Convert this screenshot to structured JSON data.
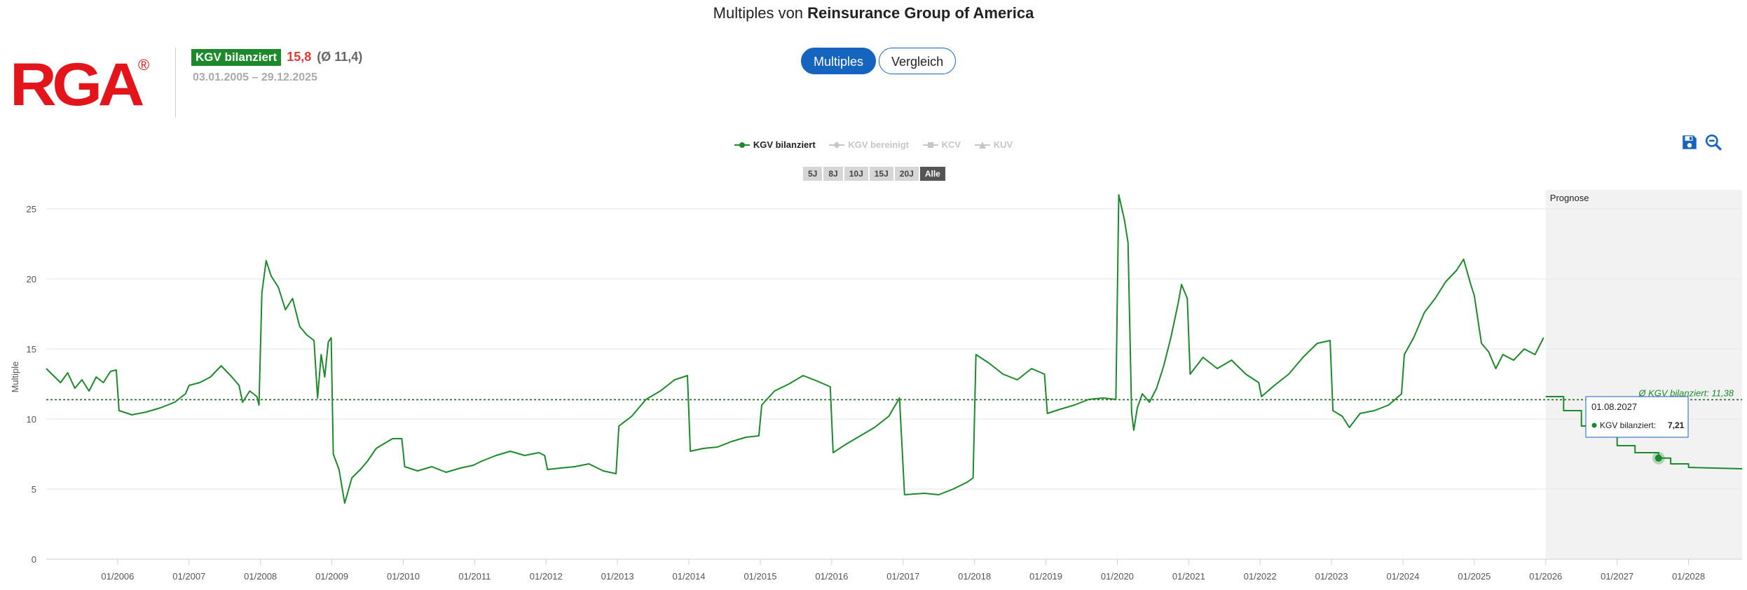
{
  "header": {
    "title_prefix": "Multiples von",
    "title_company": "Reinsurance Group of America"
  },
  "logo": {
    "text": "RGA",
    "mark": "®",
    "color": "#e3151a"
  },
  "kgv": {
    "label": "KGV bilanziert",
    "value": "15,8",
    "average": "(Ø 11,4)",
    "dates": "03.01.2005 – 29.12.2025"
  },
  "tabs": [
    {
      "label": "Multiples",
      "active": true
    },
    {
      "label": "Vergleich",
      "active": false
    }
  ],
  "legend": [
    {
      "label": "KGV bilanziert",
      "active": true
    },
    {
      "label": "KGV bereinigt",
      "active": false
    },
    {
      "label": "KCV",
      "active": false
    },
    {
      "label": "KUV",
      "active": false
    }
  ],
  "ranges": [
    {
      "label": "5J",
      "active": false
    },
    {
      "label": "8J",
      "active": false
    },
    {
      "label": "10J",
      "active": false
    },
    {
      "label": "15J",
      "active": false
    },
    {
      "label": "20J",
      "active": false
    },
    {
      "label": "Alle",
      "active": true
    }
  ],
  "toolbar": {
    "save_icon": "save-icon",
    "zoom_icon": "zoom-out-icon"
  },
  "colors": {
    "series": "#1c8a2a",
    "accent": "#1565c0",
    "forecast_bg": "#f2f2f2"
  },
  "chart_data": {
    "type": "line",
    "ylabel": "Multiple",
    "ylim": [
      0,
      26
    ],
    "yticks": [
      0,
      5,
      10,
      15,
      20,
      25
    ],
    "xlim": [
      2005.0,
      2028.75
    ],
    "xticks": [
      "01/2006",
      "01/2007",
      "01/2008",
      "01/2009",
      "01/2010",
      "01/2011",
      "01/2012",
      "01/2013",
      "01/2014",
      "01/2015",
      "01/2016",
      "01/2017",
      "01/2018",
      "01/2019",
      "01/2020",
      "01/2021",
      "01/2022",
      "01/2023",
      "01/2024",
      "01/2025",
      "01/2026",
      "01/2027",
      "01/2028"
    ],
    "grid": "horizontal",
    "forecast": {
      "label": "Prognose",
      "start": 2026.0
    },
    "average": {
      "value": 11.38,
      "label": "Ø KGV bilanziert: 11,38"
    },
    "tooltip": {
      "date": "01.08.2027",
      "series": "KGV bilanziert:",
      "value": "7,21",
      "x": 2027.58,
      "y": 7.21
    },
    "series": [
      {
        "name": "KGV bilanziert",
        "points": [
          [
            2005.0,
            13.6
          ],
          [
            2005.1,
            13.1
          ],
          [
            2005.2,
            12.6
          ],
          [
            2005.3,
            13.3
          ],
          [
            2005.4,
            12.2
          ],
          [
            2005.5,
            12.8
          ],
          [
            2005.6,
            12.0
          ],
          [
            2005.7,
            13.0
          ],
          [
            2005.8,
            12.6
          ],
          [
            2005.9,
            13.4
          ],
          [
            2005.98,
            13.5
          ],
          [
            2006.02,
            10.6
          ],
          [
            2006.2,
            10.3
          ],
          [
            2006.4,
            10.5
          ],
          [
            2006.6,
            10.8
          ],
          [
            2006.8,
            11.2
          ],
          [
            2006.95,
            11.8
          ],
          [
            2007.0,
            12.4
          ],
          [
            2007.15,
            12.6
          ],
          [
            2007.3,
            13.0
          ],
          [
            2007.45,
            13.8
          ],
          [
            2007.6,
            13.0
          ],
          [
            2007.7,
            12.4
          ],
          [
            2007.75,
            11.2
          ],
          [
            2007.85,
            12.0
          ],
          [
            2007.95,
            11.6
          ],
          [
            2007.98,
            11.0
          ],
          [
            2008.02,
            19.0
          ],
          [
            2008.08,
            21.3
          ],
          [
            2008.15,
            20.2
          ],
          [
            2008.25,
            19.4
          ],
          [
            2008.35,
            17.8
          ],
          [
            2008.45,
            18.6
          ],
          [
            2008.55,
            16.6
          ],
          [
            2008.65,
            16.0
          ],
          [
            2008.75,
            15.6
          ],
          [
            2008.8,
            11.5
          ],
          [
            2008.85,
            14.6
          ],
          [
            2008.9,
            13.0
          ],
          [
            2008.95,
            15.5
          ],
          [
            2008.99,
            15.8
          ],
          [
            2009.02,
            7.5
          ],
          [
            2009.1,
            6.4
          ],
          [
            2009.18,
            4.0
          ],
          [
            2009.28,
            5.8
          ],
          [
            2009.4,
            6.4
          ],
          [
            2009.5,
            7.0
          ],
          [
            2009.62,
            7.9
          ],
          [
            2009.75,
            8.3
          ],
          [
            2009.85,
            8.6
          ],
          [
            2009.98,
            8.6
          ],
          [
            2010.02,
            6.6
          ],
          [
            2010.2,
            6.3
          ],
          [
            2010.4,
            6.6
          ],
          [
            2010.6,
            6.2
          ],
          [
            2010.8,
            6.5
          ],
          [
            2010.98,
            6.7
          ],
          [
            2011.1,
            7.0
          ],
          [
            2011.3,
            7.4
          ],
          [
            2011.5,
            7.7
          ],
          [
            2011.7,
            7.4
          ],
          [
            2011.9,
            7.6
          ],
          [
            2011.98,
            7.4
          ],
          [
            2012.02,
            6.4
          ],
          [
            2012.2,
            6.5
          ],
          [
            2012.4,
            6.6
          ],
          [
            2012.6,
            6.8
          ],
          [
            2012.8,
            6.3
          ],
          [
            2012.98,
            6.1
          ],
          [
            2013.02,
            9.5
          ],
          [
            2013.2,
            10.2
          ],
          [
            2013.4,
            11.4
          ],
          [
            2013.6,
            12.0
          ],
          [
            2013.8,
            12.8
          ],
          [
            2013.98,
            13.1
          ],
          [
            2014.02,
            7.7
          ],
          [
            2014.2,
            7.9
          ],
          [
            2014.4,
            8.0
          ],
          [
            2014.6,
            8.4
          ],
          [
            2014.8,
            8.7
          ],
          [
            2014.98,
            8.8
          ],
          [
            2015.02,
            11.0
          ],
          [
            2015.2,
            12.0
          ],
          [
            2015.4,
            12.5
          ],
          [
            2015.6,
            13.1
          ],
          [
            2015.8,
            12.7
          ],
          [
            2015.98,
            12.3
          ],
          [
            2016.02,
            7.6
          ],
          [
            2016.2,
            8.2
          ],
          [
            2016.4,
            8.8
          ],
          [
            2016.6,
            9.4
          ],
          [
            2016.8,
            10.2
          ],
          [
            2016.95,
            11.5
          ],
          [
            2017.02,
            4.6
          ],
          [
            2017.3,
            4.7
          ],
          [
            2017.5,
            4.6
          ],
          [
            2017.7,
            5.0
          ],
          [
            2017.9,
            5.5
          ],
          [
            2017.98,
            5.8
          ],
          [
            2018.02,
            14.6
          ],
          [
            2018.2,
            14.0
          ],
          [
            2018.4,
            13.2
          ],
          [
            2018.6,
            12.8
          ],
          [
            2018.8,
            13.6
          ],
          [
            2018.98,
            13.2
          ],
          [
            2019.02,
            10.4
          ],
          [
            2019.2,
            10.7
          ],
          [
            2019.4,
            11.0
          ],
          [
            2019.6,
            11.4
          ],
          [
            2019.8,
            11.5
          ],
          [
            2019.98,
            11.4
          ],
          [
            2020.02,
            26.0
          ],
          [
            2020.1,
            24.2
          ],
          [
            2020.15,
            22.6
          ],
          [
            2020.2,
            10.5
          ],
          [
            2020.23,
            9.2
          ],
          [
            2020.28,
            10.8
          ],
          [
            2020.35,
            11.8
          ],
          [
            2020.45,
            11.2
          ],
          [
            2020.55,
            12.2
          ],
          [
            2020.65,
            13.8
          ],
          [
            2020.75,
            15.8
          ],
          [
            2020.85,
            18.2
          ],
          [
            2020.9,
            19.6
          ],
          [
            2020.98,
            18.6
          ],
          [
            2021.02,
            13.2
          ],
          [
            2021.2,
            14.4
          ],
          [
            2021.4,
            13.6
          ],
          [
            2021.6,
            14.2
          ],
          [
            2021.8,
            13.2
          ],
          [
            2021.98,
            12.6
          ],
          [
            2022.02,
            11.6
          ],
          [
            2022.2,
            12.4
          ],
          [
            2022.4,
            13.2
          ],
          [
            2022.6,
            14.4
          ],
          [
            2022.8,
            15.4
          ],
          [
            2022.98,
            15.6
          ],
          [
            2023.02,
            10.6
          ],
          [
            2023.15,
            10.2
          ],
          [
            2023.25,
            9.4
          ],
          [
            2023.4,
            10.4
          ],
          [
            2023.6,
            10.6
          ],
          [
            2023.8,
            11.0
          ],
          [
            2023.98,
            11.8
          ],
          [
            2024.02,
            14.6
          ],
          [
            2024.15,
            15.8
          ],
          [
            2024.3,
            17.6
          ],
          [
            2024.45,
            18.6
          ],
          [
            2024.6,
            19.8
          ],
          [
            2024.75,
            20.6
          ],
          [
            2024.85,
            21.4
          ],
          [
            2024.95,
            19.6
          ],
          [
            2025.0,
            18.8
          ],
          [
            2025.1,
            15.4
          ],
          [
            2025.2,
            14.8
          ],
          [
            2025.3,
            13.6
          ],
          [
            2025.4,
            14.6
          ],
          [
            2025.55,
            14.2
          ],
          [
            2025.7,
            15.0
          ],
          [
            2025.85,
            14.6
          ],
          [
            2025.97,
            15.8
          ]
        ]
      },
      {
        "name": "KGV bilanziert",
        "forecast": true,
        "points": [
          [
            2026.0,
            11.6
          ],
          [
            2026.25,
            11.6
          ],
          [
            2026.25,
            10.6
          ],
          [
            2026.5,
            10.6
          ],
          [
            2026.5,
            9.5
          ],
          [
            2026.75,
            9.5
          ],
          [
            2026.75,
            8.8
          ],
          [
            2027.0,
            8.8
          ],
          [
            2027.0,
            8.1
          ],
          [
            2027.25,
            8.1
          ],
          [
            2027.25,
            7.6
          ],
          [
            2027.58,
            7.6
          ],
          [
            2027.58,
            7.21
          ],
          [
            2027.75,
            7.21
          ],
          [
            2027.75,
            6.8
          ],
          [
            2028.0,
            6.8
          ],
          [
            2028.0,
            6.55
          ],
          [
            2028.75,
            6.45
          ]
        ]
      }
    ]
  }
}
